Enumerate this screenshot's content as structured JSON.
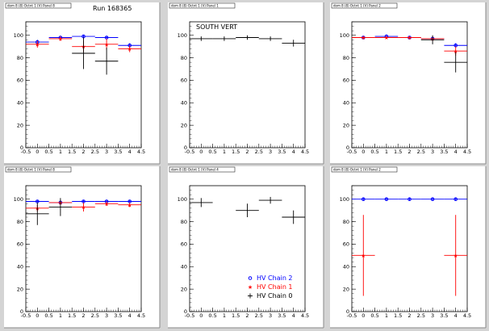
{
  "figure": {
    "run_label": "Run 168365"
  },
  "legend": [
    {
      "label": "HV Chain 2",
      "color": "#0000ff",
      "marker": "circle"
    },
    {
      "label": "HV Chain 1",
      "color": "#ff0000",
      "marker": "star"
    },
    {
      "label": "HV Chain 0",
      "color": "#000000",
      "marker": "cross"
    }
  ],
  "chart_data": [
    {
      "type": "scatter",
      "title": "dom 8 (8) Octnt 1 (V) Panel 8",
      "annotation": "Run 168365",
      "xlim": [
        -0.5,
        4.5
      ],
      "ylim": [
        0,
        112
      ],
      "xticks": [
        "-0.5",
        "0",
        "0.5",
        "1",
        "1.5",
        "2",
        "2.5",
        "3",
        "3.5",
        "4",
        "4.5"
      ],
      "yticks": [
        "0",
        "20",
        "40",
        "60",
        "80",
        "100"
      ],
      "series": [
        {
          "color": "#0000ff",
          "marker": "circle",
          "points": [
            {
              "x": 0,
              "y": 94,
              "xerr": 0.5,
              "yerr": 2
            },
            {
              "x": 1,
              "y": 98,
              "xerr": 0.5,
              "yerr": 1
            },
            {
              "x": 2,
              "y": 99,
              "xerr": 0.5,
              "yerr": 1
            },
            {
              "x": 3,
              "y": 98,
              "xerr": 0.5,
              "yerr": 1
            },
            {
              "x": 4,
              "y": 91,
              "xerr": 0.5,
              "yerr": 2
            }
          ]
        },
        {
          "color": "#ff0000",
          "marker": "star",
          "points": [
            {
              "x": 0,
              "y": 92,
              "xerr": 0.5,
              "yerr": 3
            },
            {
              "x": 1,
              "y": 97,
              "xerr": 0.5,
              "yerr": 2
            },
            {
              "x": 2,
              "y": 90,
              "xerr": 0.5,
              "yerr": 5
            },
            {
              "x": 3,
              "y": 92,
              "xerr": 0.5,
              "yerr": 5
            },
            {
              "x": 4,
              "y": 88,
              "xerr": 0.5,
              "yerr": 3
            }
          ]
        },
        {
          "color": "#000000",
          "marker": "cross",
          "points": [
            {
              "x": 2,
              "y": 84,
              "xerr": 0.5,
              "yerr": 14
            },
            {
              "x": 3,
              "y": 77,
              "xerr": 0.5,
              "yerr": 12
            }
          ]
        }
      ]
    },
    {
      "type": "scatter",
      "title": "dom 8 (8) Octnt 1 (V) Panel 1",
      "annotation": "SOUTH VERT",
      "xlim": [
        -0.5,
        4.5
      ],
      "ylim": [
        0,
        112
      ],
      "xticks": [
        "-0.5",
        "0",
        "0.5",
        "1",
        "1.5",
        "2",
        "2.5",
        "3",
        "3.5",
        "4",
        "4.5"
      ],
      "yticks": [
        "0",
        "20",
        "40",
        "60",
        "80",
        "100"
      ],
      "series": [
        {
          "color": "#000000",
          "marker": "cross",
          "points": [
            {
              "x": 0,
              "y": 97,
              "xerr": 0.5,
              "yerr": 2
            },
            {
              "x": 1,
              "y": 97,
              "xerr": 0.5,
              "yerr": 2
            },
            {
              "x": 2,
              "y": 98,
              "xerr": 0.5,
              "yerr": 2
            },
            {
              "x": 3,
              "y": 97,
              "xerr": 0.5,
              "yerr": 2
            },
            {
              "x": 4,
              "y": 93,
              "xerr": 0.5,
              "yerr": 3
            }
          ]
        }
      ]
    },
    {
      "type": "scatter",
      "title": "dom 8 (8) Octnt 1 (V) Panel 2",
      "annotation": "",
      "xlim": [
        -0.5,
        4.5
      ],
      "ylim": [
        0,
        112
      ],
      "xticks": [
        "-0.5",
        "0",
        "0.5",
        "1",
        "1.5",
        "2",
        "2.5",
        "3",
        "3.5",
        "4",
        "4.5"
      ],
      "yticks": [
        "0",
        "20",
        "40",
        "60",
        "80",
        "100"
      ],
      "series": [
        {
          "color": "#0000ff",
          "marker": "circle",
          "points": [
            {
              "x": 0,
              "y": 98,
              "xerr": 0.5,
              "yerr": 1
            },
            {
              "x": 1,
              "y": 99,
              "xerr": 0.5,
              "yerr": 1
            },
            {
              "x": 2,
              "y": 98,
              "xerr": 0.5,
              "yerr": 1
            },
            {
              "x": 3,
              "y": 97,
              "xerr": 0.5,
              "yerr": 1
            },
            {
              "x": 4,
              "y": 91,
              "xerr": 0.5,
              "yerr": 2
            }
          ]
        },
        {
          "color": "#ff0000",
          "marker": "star",
          "points": [
            {
              "x": 0,
              "y": 98,
              "xerr": 0.5,
              "yerr": 1
            },
            {
              "x": 1,
              "y": 98,
              "xerr": 0.5,
              "yerr": 1
            },
            {
              "x": 2,
              "y": 98,
              "xerr": 0.5,
              "yerr": 1
            },
            {
              "x": 3,
              "y": 97,
              "xerr": 0.5,
              "yerr": 2
            },
            {
              "x": 4,
              "y": 86,
              "xerr": 0.5,
              "yerr": 4
            }
          ]
        },
        {
          "color": "#000000",
          "marker": "cross",
          "points": [
            {
              "x": 3,
              "y": 96,
              "xerr": 0.5,
              "yerr": 4
            },
            {
              "x": 4,
              "y": 76,
              "xerr": 0.5,
              "yerr": 9
            }
          ]
        }
      ]
    },
    {
      "type": "scatter",
      "title": "dom 8 (8) Octnt 1 (V) Panel 8",
      "annotation": "",
      "xlim": [
        -0.5,
        4.5
      ],
      "ylim": [
        0,
        112
      ],
      "xticks": [
        "-0.5",
        "0",
        "0.5",
        "1",
        "1.5",
        "2",
        "2.5",
        "3",
        "3.5",
        "4",
        "4.5"
      ],
      "yticks": [
        "0",
        "20",
        "40",
        "60",
        "80",
        "100"
      ],
      "series": [
        {
          "color": "#0000ff",
          "marker": "circle",
          "points": [
            {
              "x": 0,
              "y": 98,
              "xerr": 0.5,
              "yerr": 1
            },
            {
              "x": 1,
              "y": 97,
              "xerr": 0.5,
              "yerr": 1
            },
            {
              "x": 2,
              "y": 98,
              "xerr": 0.5,
              "yerr": 1
            },
            {
              "x": 3,
              "y": 98,
              "xerr": 0.5,
              "yerr": 1
            },
            {
              "x": 4,
              "y": 98,
              "xerr": 0.5,
              "yerr": 1
            }
          ]
        },
        {
          "color": "#ff0000",
          "marker": "star",
          "points": [
            {
              "x": 0,
              "y": 92,
              "xerr": 0.5,
              "yerr": 3
            },
            {
              "x": 1,
              "y": 97,
              "xerr": 0.5,
              "yerr": 2
            },
            {
              "x": 2,
              "y": 93,
              "xerr": 0.5,
              "yerr": 4
            },
            {
              "x": 3,
              "y": 96,
              "xerr": 0.5,
              "yerr": 2
            },
            {
              "x": 4,
              "y": 95,
              "xerr": 0.5,
              "yerr": 2
            }
          ]
        },
        {
          "color": "#000000",
          "marker": "cross",
          "points": [
            {
              "x": 0,
              "y": 87,
              "xerr": 0.5,
              "yerr": 10
            },
            {
              "x": 1,
              "y": 93,
              "xerr": 0.5,
              "yerr": 8
            }
          ]
        }
      ]
    },
    {
      "type": "scatter",
      "title": "dom 8 (8) Octnt 1 (V) Panel 4",
      "annotation": "",
      "xlim": [
        -0.5,
        4.5
      ],
      "ylim": [
        0,
        112
      ],
      "xticks": [
        "-0.5",
        "0",
        "0.5",
        "1",
        "1.5",
        "2",
        "2.5",
        "3",
        "3.5",
        "4",
        "4.5"
      ],
      "yticks": [
        "0",
        "20",
        "40",
        "60",
        "80",
        "100"
      ],
      "show_legend": true,
      "series": [
        {
          "color": "#000000",
          "marker": "cross",
          "points": [
            {
              "x": 0,
              "y": 97,
              "xerr": 0.5,
              "yerr": 4
            },
            {
              "x": 2,
              "y": 90,
              "xerr": 0.5,
              "yerr": 6
            },
            {
              "x": 3,
              "y": 99,
              "xerr": 0.5,
              "yerr": 3
            },
            {
              "x": 4,
              "y": 84,
              "xerr": 0.5,
              "yerr": 6
            }
          ]
        }
      ]
    },
    {
      "type": "scatter",
      "title": "dom 8 (8) Octnt 1 (V) Panel 2",
      "annotation": "",
      "xlim": [
        -0.5,
        4.5
      ],
      "ylim": [
        0,
        112
      ],
      "xticks": [
        "-0.5",
        "0",
        "0.5",
        "1",
        "1.5",
        "2",
        "2.5",
        "3",
        "3.5",
        "4",
        "4.5"
      ],
      "yticks": [
        "0",
        "20",
        "40",
        "60",
        "80",
        "100"
      ],
      "series": [
        {
          "color": "#0000ff",
          "marker": "circle",
          "points": [
            {
              "x": 0,
              "y": 100,
              "xerr": 0.5,
              "yerr": 1
            },
            {
              "x": 1,
              "y": 100,
              "xerr": 0.5,
              "yerr": 1
            },
            {
              "x": 2,
              "y": 100,
              "xerr": 0.5,
              "yerr": 1
            },
            {
              "x": 3,
              "y": 100,
              "xerr": 0.5,
              "yerr": 1
            },
            {
              "x": 4,
              "y": 100,
              "xerr": 0.5,
              "yerr": 1
            }
          ]
        },
        {
          "color": "#ff0000",
          "marker": "star",
          "points": [
            {
              "x": 0,
              "y": 50,
              "xerr": 0.5,
              "yerr": 36
            },
            {
              "x": 4,
              "y": 50,
              "xerr": 0.5,
              "yerr": 36
            }
          ]
        }
      ]
    }
  ]
}
